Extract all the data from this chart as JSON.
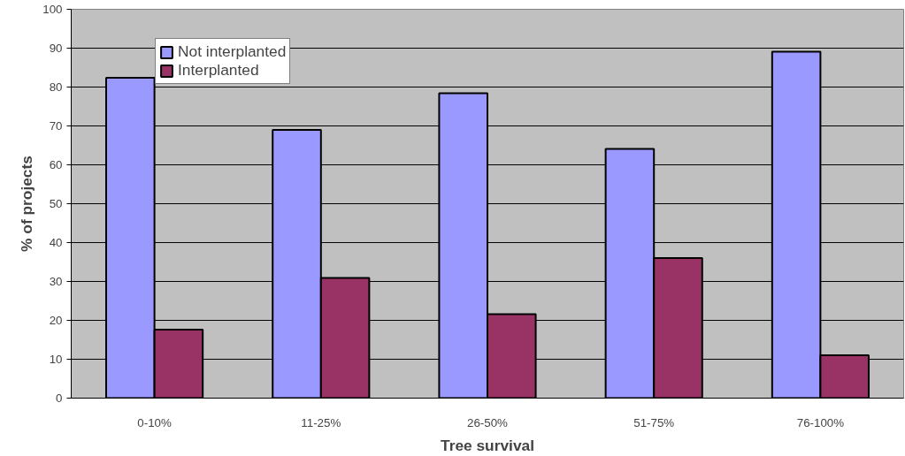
{
  "chart_data": {
    "type": "bar",
    "xlabel": "Tree survival",
    "ylabel": "% of projects",
    "categories": [
      "0-10%",
      "11-25%",
      "26-50%",
      "51-75%",
      "76-100%"
    ],
    "series": [
      {
        "name": "Not interplanted",
        "color": "#9999ff",
        "values": [
          82.4,
          69.0,
          78.4,
          64.1,
          89.1
        ]
      },
      {
        "name": "Interplanted",
        "color": "#993366",
        "values": [
          17.6,
          30.9,
          21.6,
          36.0,
          11.0
        ]
      }
    ],
    "ylim": [
      0,
      100
    ],
    "yticks": [
      0,
      10,
      20,
      30,
      40,
      50,
      60,
      70,
      80,
      90,
      100
    ],
    "grid": "y",
    "legend": "top left"
  }
}
